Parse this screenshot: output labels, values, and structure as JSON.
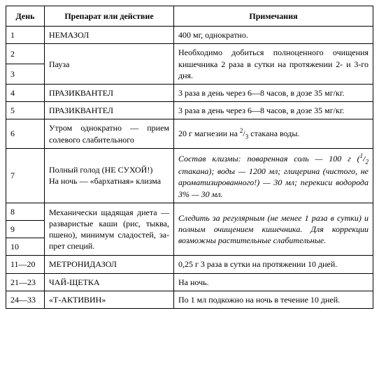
{
  "headers": {
    "day": "День",
    "drug": "Препарат или действие",
    "notes": "Примечания"
  },
  "rows": {
    "r1_day": "1",
    "r1_drug": "НЕМАЗОЛ",
    "r1_notes": "400 мг, однократно.",
    "r2_day": "2",
    "r2_drug": "Пауза",
    "r2_notes": "Необходимо добиться полноценного очищения кишечника 2 раза в сутки на протяжении 2- и 3-го дня.",
    "r3_day": "3",
    "r4_day": "4",
    "r4_drug": "ПРАЗИКВАНТЕЛ",
    "r4_notes": "3 раза в день через 6—8 часов, в дозе 35 мг/кг.",
    "r5_day": "5",
    "r5_drug": "ПРАЗИКВАНТЕЛ",
    "r5_notes": "3 раза в день через 6—8 часов, в дозе 35 мг/кг.",
    "r6_day": "6",
    "r6_drug": "Утром однократно — при­ем солевого слаби­тель­ного",
    "r6_notes_a": "20 г магнезии на ",
    "r6_frac_n": "2",
    "r6_frac_d": "3",
    "r6_notes_b": " стакана воды.",
    "r7_day": "7",
    "r7_drug_a": "Полный голод (НЕ СУ­ХОЙ!)",
    "r7_drug_b": "На ночь — «бархатная» клизма",
    "r7_notes_a": "Состав клизмы: поваренная соль — 100 г (",
    "r7_frac_n": "1",
    "r7_frac_d": "2",
    "r7_notes_b": " стакана); воды — 1200 мл; глицери­на (чистого, не ароматизированно­го!) — 30 мл; перекиси водорода 3% — 30 мл.",
    "r8_day": "8",
    "r8_drug": "Механически щадящая дие­та — разваристые ка­ши (рис, тыква, пшено), ми­нимум сладостей, за­прет специй.",
    "r8_notes": "Следить за регулярным (не менее 1 раза в сутки) и полным очищением кишечни­ка. Для коррекции возможны расти­тельные слабительные.",
    "r9_day": "9",
    "r10_day": "10",
    "r11_day": "11—20",
    "r11_drug": "МЕТРОНИДАЗОЛ",
    "r11_notes": "0,25 г 3 раза в сутки на протяжении 10 дней.",
    "r12_day": "21—23",
    "r12_drug": "ЧАЙ-ЩЕТКА",
    "r12_notes": "На ночь.",
    "r13_day": "24—33",
    "r13_drug": "«Т-АКТИВИН»",
    "r13_notes": "По 1 мл подкожно на ночь в течение 10 дней."
  }
}
